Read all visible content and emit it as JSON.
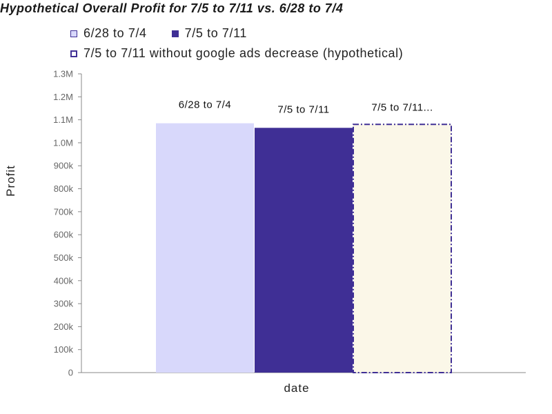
{
  "chart_data": {
    "type": "bar",
    "title": "Hypothetical Overall Profit for 7/5 to 7/11 vs. 6/28 to 7/4",
    "xlabel": "date",
    "ylabel": "Profit",
    "ylim": [
      0,
      1300000
    ],
    "yticks": [
      "0",
      "100k",
      "200k",
      "300k",
      "400k",
      "500k",
      "600k",
      "700k",
      "800k",
      "900k",
      "1.0M",
      "1.1M",
      "1.2M",
      "1.3M"
    ],
    "legend_position": "top-left",
    "series": [
      {
        "name": "6/28 to 7/4",
        "label": "6/28 to 7/4",
        "value": 1085000,
        "fill": "#d8d8fb",
        "stroke": "#d8d8fb",
        "dashed": false
      },
      {
        "name": "7/5 to 7/11",
        "label": "7/5 to 7/11",
        "value": 1065000,
        "fill": "#3f2f95",
        "stroke": "#3f2f95",
        "dashed": false
      },
      {
        "name": "7/5 to 7/11 without google ads decrease (hypothetical)",
        "label": "7/5 to 7/11...",
        "value": 1080000,
        "fill": "#fbf7e8",
        "stroke": "#3f2f95",
        "dashed": true
      }
    ],
    "grid": false
  }
}
